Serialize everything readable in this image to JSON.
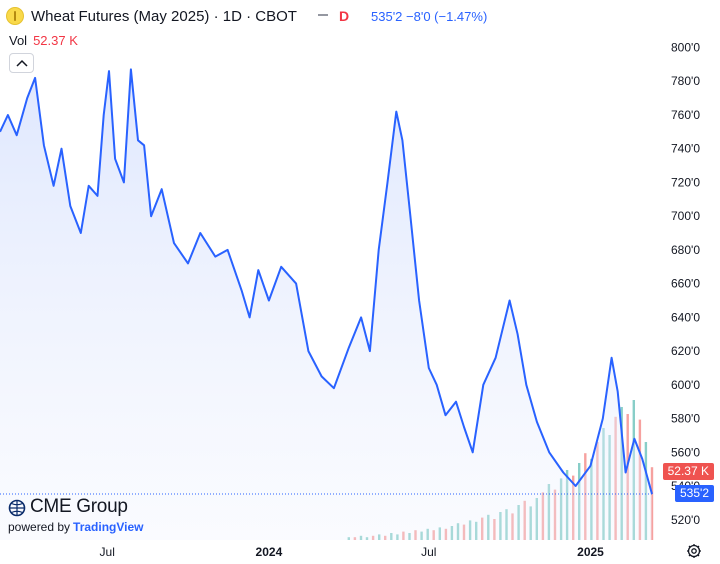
{
  "header": {
    "title": "Wheat Futures (May 2025) · 1D · CBOT",
    "flag": "D",
    "price_text": "535'2 −8'0 (−1.47%)"
  },
  "volume": {
    "label": "Vol",
    "value": "52.37 K"
  },
  "badges": {
    "volume": "52.37 K",
    "price": "535'2"
  },
  "branding": {
    "logo_text": "CME Group",
    "powered_by": "powered by",
    "tradingview": "TradingView"
  },
  "icons": {
    "symbol": "wheat-symbol-icon",
    "collapse": "chevron-up-icon",
    "settings": "gear-icon"
  },
  "colors": {
    "line": "#2962ff",
    "area": "#e8eefe",
    "vol_up": "#26a69a",
    "vol_down": "#ef5350",
    "axis_text": "#131722"
  },
  "chart_data": {
    "type": "area",
    "title": "Wheat Futures (May 2025) · 1D · CBOT",
    "xlabel": "",
    "ylabel": "",
    "ylim": [
      508,
      808
    ],
    "y_ticks": [
      {
        "value": 520,
        "label": "520'0"
      },
      {
        "value": 540,
        "label": "540'0"
      },
      {
        "value": 560,
        "label": "560'0"
      },
      {
        "value": 580,
        "label": "580'0"
      },
      {
        "value": 600,
        "label": "600'0"
      },
      {
        "value": 620,
        "label": "620'0"
      },
      {
        "value": 640,
        "label": "640'0"
      },
      {
        "value": 660,
        "label": "660'0"
      },
      {
        "value": 680,
        "label": "680'0"
      },
      {
        "value": 700,
        "label": "700'0"
      },
      {
        "value": 720,
        "label": "720'0"
      },
      {
        "value": 740,
        "label": "740'0"
      },
      {
        "value": 760,
        "label": "760'0"
      },
      {
        "value": 780,
        "label": "780'0"
      },
      {
        "value": 800,
        "label": "800'0"
      }
    ],
    "x_ticks": [
      {
        "date": "2023-07-01",
        "label": "Jul",
        "bold": false
      },
      {
        "date": "2024-01-01",
        "label": "2024",
        "bold": true
      },
      {
        "date": "2024-07-01",
        "label": "Jul",
        "bold": false
      },
      {
        "date": "2025-01-01",
        "label": "2025",
        "bold": true
      }
    ],
    "xlim": [
      "2023-03-01",
      "2025-03-12"
    ],
    "last_price": 535.25,
    "series": [
      {
        "name": "Close",
        "points": [
          [
            "2023-03-01",
            750
          ],
          [
            "2023-03-10",
            760
          ],
          [
            "2023-03-20",
            748
          ],
          [
            "2023-04-01",
            770
          ],
          [
            "2023-04-10",
            782
          ],
          [
            "2023-04-20",
            742
          ],
          [
            "2023-05-01",
            718
          ],
          [
            "2023-05-10",
            740
          ],
          [
            "2023-05-20",
            706
          ],
          [
            "2023-06-01",
            690
          ],
          [
            "2023-06-10",
            718
          ],
          [
            "2023-06-20",
            712
          ],
          [
            "2023-06-27",
            760
          ],
          [
            "2023-07-03",
            786
          ],
          [
            "2023-07-10",
            734
          ],
          [
            "2023-07-20",
            720
          ],
          [
            "2023-07-28",
            787
          ],
          [
            "2023-08-05",
            745
          ],
          [
            "2023-08-12",
            742
          ],
          [
            "2023-08-20",
            700
          ],
          [
            "2023-09-01",
            716
          ],
          [
            "2023-09-15",
            684
          ],
          [
            "2023-10-01",
            672
          ],
          [
            "2023-10-15",
            690
          ],
          [
            "2023-11-01",
            676
          ],
          [
            "2023-11-15",
            680
          ],
          [
            "2023-12-01",
            656
          ],
          [
            "2023-12-10",
            640
          ],
          [
            "2023-12-20",
            668
          ],
          [
            "2024-01-01",
            650
          ],
          [
            "2024-01-15",
            670
          ],
          [
            "2024-02-01",
            660
          ],
          [
            "2024-02-15",
            620
          ],
          [
            "2024-03-01",
            605
          ],
          [
            "2024-03-15",
            598
          ],
          [
            "2024-04-01",
            622
          ],
          [
            "2024-04-15",
            640
          ],
          [
            "2024-04-25",
            620
          ],
          [
            "2024-05-05",
            680
          ],
          [
            "2024-05-15",
            720
          ],
          [
            "2024-05-25",
            762
          ],
          [
            "2024-06-01",
            745
          ],
          [
            "2024-06-10",
            700
          ],
          [
            "2024-06-20",
            650
          ],
          [
            "2024-07-01",
            610
          ],
          [
            "2024-07-10",
            600
          ],
          [
            "2024-07-20",
            582
          ],
          [
            "2024-08-01",
            590
          ],
          [
            "2024-08-10",
            575
          ],
          [
            "2024-08-20",
            560
          ],
          [
            "2024-09-01",
            600
          ],
          [
            "2024-09-15",
            616
          ],
          [
            "2024-10-01",
            650
          ],
          [
            "2024-10-10",
            630
          ],
          [
            "2024-10-20",
            600
          ],
          [
            "2024-11-01",
            578
          ],
          [
            "2024-11-15",
            560
          ],
          [
            "2024-12-01",
            548
          ],
          [
            "2024-12-15",
            540
          ],
          [
            "2025-01-01",
            552
          ],
          [
            "2025-01-15",
            580
          ],
          [
            "2025-01-25",
            616
          ],
          [
            "2025-02-01",
            596
          ],
          [
            "2025-02-10",
            548
          ],
          [
            "2025-02-20",
            568
          ],
          [
            "2025-03-01",
            556
          ],
          [
            "2025-03-12",
            535.25
          ]
        ]
      }
    ],
    "volume": {
      "name": "Vol",
      "values": [
        2,
        2,
        3,
        2,
        3,
        4,
        3,
        5,
        4,
        6,
        5,
        7,
        6,
        8,
        7,
        9,
        8,
        10,
        12,
        11,
        14,
        13,
        16,
        18,
        15,
        20,
        22,
        19,
        25,
        28,
        24,
        30,
        34,
        40,
        36,
        44,
        50,
        46,
        55,
        62,
        58,
        70,
        80,
        75,
        88,
        95,
        90,
        100,
        86,
        70,
        52
      ],
      "up": [
        true,
        false,
        true,
        true,
        false,
        true,
        false,
        true,
        true,
        false,
        true,
        false,
        true,
        true,
        false,
        true,
        false,
        true,
        true,
        false,
        true,
        true,
        false,
        true,
        false,
        true,
        true,
        false,
        true,
        false,
        true,
        true,
        false,
        true,
        false,
        true,
        true,
        false,
        true,
        false,
        true,
        false,
        true,
        true,
        false,
        true,
        false,
        true,
        false,
        true,
        false
      ],
      "start": "2024-04-01",
      "end": "2025-03-12",
      "max_label_value": 52.37
    }
  }
}
